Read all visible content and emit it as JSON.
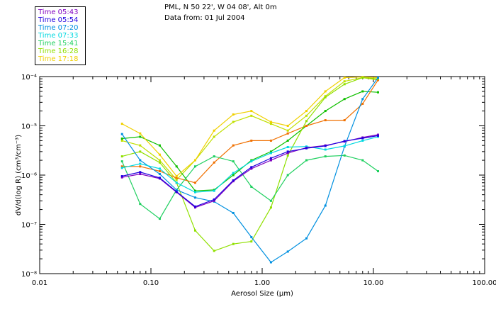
{
  "chart_data": {
    "type": "line",
    "title": "PML, N 50 22', W 04 08', Alt 0m",
    "subtitle": "Data from: 01 Jul 2004",
    "xlabel": "Aerosol Size (µm)",
    "ylabel": "dV/d(log R) (cm³/cm⁻³)",
    "xscale": "log",
    "yscale": "log",
    "xlim": [
      0.01,
      100
    ],
    "ylim": [
      1e-08,
      0.0001
    ],
    "xticks": [
      {
        "value": 0.01,
        "label": "0.01"
      },
      {
        "value": 0.1,
        "label": "0.10"
      },
      {
        "value": 1,
        "label": "1.00"
      },
      {
        "value": 10,
        "label": "10.00"
      },
      {
        "value": 100,
        "label": "100.00"
      }
    ],
    "yticks": [
      {
        "value": 1e-08,
        "label": "10⁻⁸"
      },
      {
        "value": 1e-07,
        "label": "10⁻⁷"
      },
      {
        "value": 1e-06,
        "label": "10⁻⁶"
      },
      {
        "value": 1e-05,
        "label": "10⁻⁵"
      },
      {
        "value": 0.0001,
        "label": "10⁻⁴"
      }
    ],
    "legend_position": "top-left",
    "x": [
      0.055,
      0.08,
      0.12,
      0.17,
      0.25,
      0.37,
      0.55,
      0.8,
      1.2,
      1.7,
      2.5,
      3.7,
      5.5,
      8.0,
      11.0
    ],
    "series": [
      {
        "name": "Time 05:43",
        "color": "#8000c0",
        "values": [
          9e-07,
          1.05e-06,
          8.5e-07,
          4.5e-07,
          2.2e-07,
          3e-07,
          7.5e-07,
          1.35e-06,
          2e-06,
          2.8e-06,
          3.6e-06,
          4e-06,
          4.8e-06,
          5.8e-06,
          6.6e-06
        ]
      },
      {
        "name": "Time 05:54",
        "color": "#2000e0",
        "values": [
          9.5e-07,
          1.15e-06,
          8.8e-07,
          4.6e-07,
          2.3e-07,
          3.2e-07,
          7.8e-07,
          1.45e-06,
          2.2e-06,
          3e-06,
          3.5e-06,
          3.9e-06,
          4.9e-06,
          5.6e-06,
          6.3e-06
        ]
      },
      {
        "name": "Time 07:20",
        "color": "#0090e0",
        "values": [
          6.8e-06,
          2e-06,
          1.05e-06,
          5e-07,
          3.5e-07,
          2.9e-07,
          1.7e-07,
          5.5e-08,
          1.7e-08,
          2.8e-08,
          5.2e-08,
          2.4e-07,
          3.8e-06,
          3.5e-05,
          9.5e-05
        ]
      },
      {
        "name": "Time 07:33",
        "color": "#00d8e0",
        "values": [
          1.4e-06,
          1.7e-06,
          1.35e-06,
          7e-07,
          4.5e-07,
          4.8e-07,
          1.1e-06,
          1.9e-06,
          2.8e-06,
          3.7e-06,
          3.8e-06,
          3.3e-06,
          3.9e-06,
          5e-06,
          6e-06
        ]
      },
      {
        "name": "Time 15:41",
        "color": "#20d060",
        "values": [
          1.9e-06,
          2.6e-07,
          1.3e-07,
          5e-07,
          1.5e-06,
          2.4e-06,
          1.9e-06,
          5.8e-07,
          3e-07,
          1e-06,
          2e-06,
          2.4e-06,
          2.5e-06,
          2e-06,
          1.2e-06
        ]
      },
      {
        "name": "Time 16:28",
        "color": "#90e000",
        "values": [
          2.4e-06,
          3e-06,
          1.8e-06,
          7e-07,
          7.5e-08,
          2.9e-08,
          4e-08,
          4.5e-08,
          2.2e-07,
          2.5e-06,
          1.25e-05,
          3.8e-05,
          7e-05,
          9.5e-05,
          9e-05
        ]
      },
      {
        "name": "Time 17:18",
        "color": "#f0d000",
        "values": [
          1.1e-05,
          7e-06,
          2.6e-06,
          9.5e-07,
          2e-06,
          8e-06,
          1.7e-05,
          2e-05,
          1.2e-05,
          1e-05,
          2e-05,
          5e-05,
          9.5e-05,
          9.8e-05,
          9.5e-05
        ]
      },
      {
        "name": "",
        "color": "#f07000",
        "values": [
          1.5e-06,
          1.5e-06,
          1.2e-06,
          8.8e-07,
          7e-07,
          1.8e-06,
          4e-06,
          5e-06,
          5e-06,
          7e-06,
          1e-05,
          1.3e-05,
          1.3e-05,
          2.8e-05,
          8.5e-05
        ]
      },
      {
        "name": "",
        "color": "#10c000",
        "values": [
          5.5e-06,
          6e-06,
          4e-06,
          1.5e-06,
          4.8e-07,
          5e-07,
          1e-06,
          2e-06,
          3e-06,
          5e-06,
          1e-05,
          2e-05,
          3.5e-05,
          5e-05,
          4.8e-05
        ]
      },
      {
        "name": "",
        "color": "#c0e000",
        "values": [
          5e-06,
          4e-06,
          2e-06,
          8e-07,
          2e-06,
          6e-06,
          1.2e-05,
          1.6e-05,
          1.1e-05,
          8e-06,
          1.6e-05,
          4e-05,
          8e-05,
          9.5e-05,
          8.5e-05
        ]
      }
    ]
  }
}
